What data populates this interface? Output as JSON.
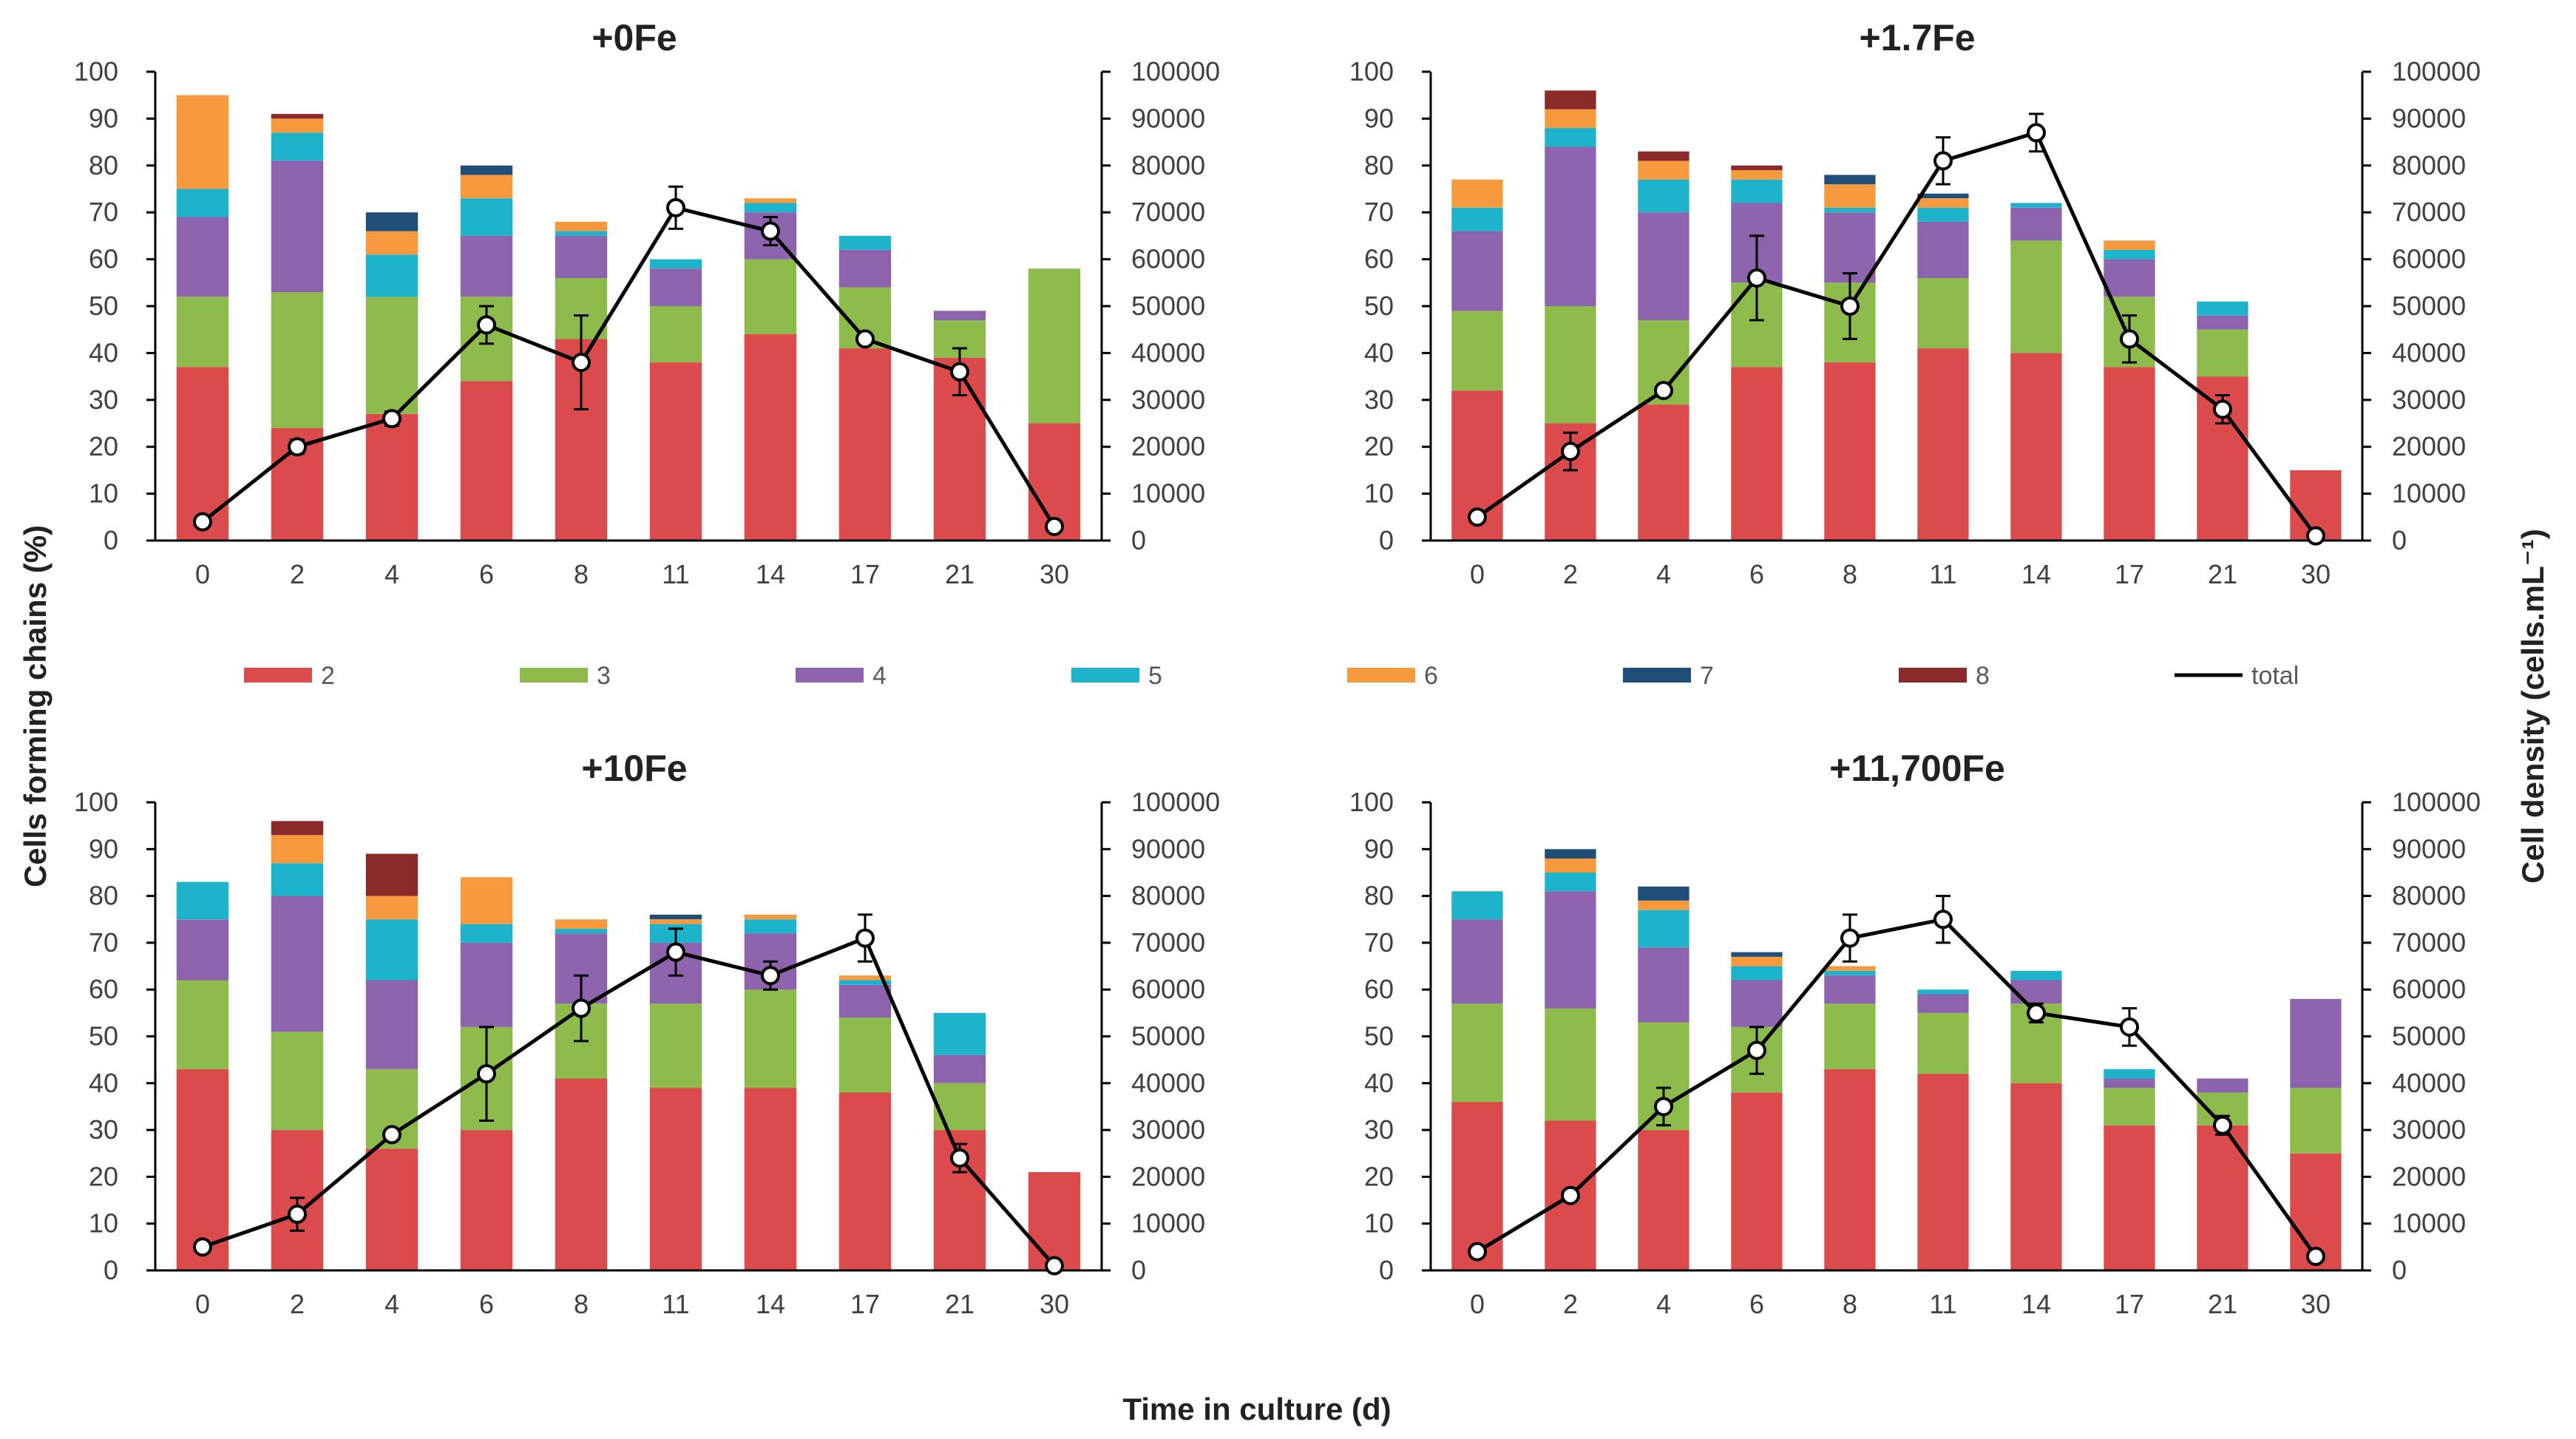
{
  "figure": {
    "y_left_label": "Cells forming chains (%)",
    "y_right_label": "Cell density (cells.mL⁻¹)",
    "x_label": "Time in culture (d)"
  },
  "legend": [
    {
      "key": "2",
      "label": "2",
      "color": "#DC4B4B"
    },
    {
      "key": "3",
      "label": "3",
      "color": "#8DBB4B"
    },
    {
      "key": "4",
      "label": "4",
      "color": "#8E63AD"
    },
    {
      "key": "5",
      "label": "5",
      "color": "#1CB3CB"
    },
    {
      "key": "6",
      "label": "6",
      "color": "#F79A3E"
    },
    {
      "key": "7",
      "label": "7",
      "color": "#1F4E79"
    },
    {
      "key": "8",
      "label": "8",
      "color": "#8B2A2A"
    },
    {
      "key": "total",
      "label": "total",
      "color": "#000000"
    }
  ],
  "chart_data": [
    {
      "type": "bar",
      "title": "+0Fe",
      "categories": [
        "0",
        "2",
        "4",
        "6",
        "8",
        "11",
        "14",
        "17",
        "21",
        "30"
      ],
      "ylim": [
        0,
        100
      ],
      "y2lim": [
        0,
        100000
      ],
      "yticks": [
        "0",
        "10",
        "20",
        "30",
        "40",
        "50",
        "60",
        "70",
        "80",
        "90",
        "100"
      ],
      "y2ticks": [
        "0",
        "10000",
        "20000",
        "30000",
        "40000",
        "50000",
        "60000",
        "70000",
        "80000",
        "90000",
        "100000"
      ],
      "series": [
        {
          "name": "2",
          "values": [
            37,
            24,
            27,
            34,
            43,
            38,
            44,
            41,
            39,
            25
          ]
        },
        {
          "name": "3",
          "values": [
            15,
            29,
            25,
            18,
            13,
            12,
            16,
            13,
            8,
            33
          ]
        },
        {
          "name": "4",
          "values": [
            17,
            28,
            0,
            13,
            9,
            8,
            10,
            8,
            2,
            0
          ]
        },
        {
          "name": "5",
          "values": [
            6,
            6,
            9,
            8,
            1,
            2,
            2,
            3,
            0,
            0
          ]
        },
        {
          "name": "6",
          "values": [
            20,
            3,
            5,
            5,
            2,
            0,
            1,
            0,
            0,
            0
          ]
        },
        {
          "name": "7",
          "values": [
            0,
            0,
            4,
            2,
            0,
            0,
            0,
            0,
            0,
            0
          ]
        },
        {
          "name": "8",
          "values": [
            0,
            1,
            0,
            0,
            0,
            0,
            0,
            0,
            0,
            0
          ]
        }
      ],
      "total": {
        "name": "total",
        "values": [
          4000,
          20000,
          26000,
          46000,
          38000,
          71000,
          66000,
          43000,
          36000,
          3000
        ],
        "errors": [
          0,
          1500,
          1500,
          4000,
          10000,
          4500,
          3000,
          0,
          5000,
          0
        ]
      }
    },
    {
      "type": "bar",
      "title": "+1.7Fe",
      "categories": [
        "0",
        "2",
        "4",
        "6",
        "8",
        "11",
        "14",
        "17",
        "21",
        "30"
      ],
      "ylim": [
        0,
        100
      ],
      "y2lim": [
        0,
        100000
      ],
      "yticks": [
        "0",
        "10",
        "20",
        "30",
        "40",
        "50",
        "60",
        "70",
        "80",
        "90",
        "100"
      ],
      "y2ticks": [
        "0",
        "10000",
        "20000",
        "30000",
        "40000",
        "50000",
        "60000",
        "70000",
        "80000",
        "90000",
        "100000"
      ],
      "series": [
        {
          "name": "2",
          "values": [
            32,
            25,
            29,
            37,
            38,
            41,
            40,
            37,
            35,
            15
          ]
        },
        {
          "name": "3",
          "values": [
            17,
            25,
            18,
            18,
            17,
            15,
            24,
            15,
            10,
            0
          ]
        },
        {
          "name": "4",
          "values": [
            17,
            34,
            23,
            17,
            15,
            12,
            7,
            8,
            3,
            0
          ]
        },
        {
          "name": "5",
          "values": [
            5,
            4,
            7,
            5,
            1,
            3,
            1,
            2,
            3,
            0
          ]
        },
        {
          "name": "6",
          "values": [
            6,
            4,
            4,
            2,
            5,
            2,
            0,
            2,
            0,
            0
          ]
        },
        {
          "name": "7",
          "values": [
            0,
            0,
            0,
            0,
            2,
            1,
            0,
            0,
            0,
            0
          ]
        },
        {
          "name": "8",
          "values": [
            0,
            4,
            2,
            1,
            0,
            0,
            0,
            0,
            0,
            0
          ]
        }
      ],
      "total": {
        "name": "total",
        "values": [
          5000,
          19000,
          32000,
          56000,
          50000,
          81000,
          87000,
          43000,
          28000,
          1000
        ],
        "errors": [
          0,
          4000,
          1000,
          9000,
          7000,
          5000,
          4000,
          5000,
          3000,
          0
        ]
      }
    },
    {
      "type": "bar",
      "title": "+10Fe",
      "categories": [
        "0",
        "2",
        "4",
        "6",
        "8",
        "11",
        "14",
        "17",
        "21",
        "30"
      ],
      "ylim": [
        0,
        100
      ],
      "y2lim": [
        0,
        100000
      ],
      "yticks": [
        "0",
        "10",
        "20",
        "30",
        "40",
        "50",
        "60",
        "70",
        "80",
        "90",
        "100"
      ],
      "y2ticks": [
        "0",
        "10000",
        "20000",
        "30000",
        "40000",
        "50000",
        "60000",
        "70000",
        "80000",
        "90000",
        "100000"
      ],
      "series": [
        {
          "name": "2",
          "values": [
            43,
            30,
            26,
            30,
            41,
            39,
            39,
            38,
            30,
            21
          ]
        },
        {
          "name": "3",
          "values": [
            19,
            21,
            17,
            22,
            16,
            18,
            21,
            16,
            10,
            0
          ]
        },
        {
          "name": "4",
          "values": [
            13,
            29,
            19,
            18,
            15,
            13,
            12,
            7,
            6,
            0
          ]
        },
        {
          "name": "5",
          "values": [
            8,
            7,
            13,
            4,
            1,
            4,
            3,
            1,
            9,
            0
          ]
        },
        {
          "name": "6",
          "values": [
            0,
            6,
            5,
            10,
            2,
            1,
            1,
            1,
            0,
            0
          ]
        },
        {
          "name": "7",
          "values": [
            0,
            0,
            0,
            0,
            0,
            1,
            0,
            0,
            0,
            0
          ]
        },
        {
          "name": "8",
          "values": [
            0,
            3,
            9,
            0,
            0,
            0,
            0,
            0,
            0,
            0
          ]
        }
      ],
      "total": {
        "name": "total",
        "values": [
          5000,
          12000,
          29000,
          42000,
          56000,
          68000,
          63000,
          71000,
          24000,
          1000
        ],
        "errors": [
          0,
          3500,
          0,
          10000,
          7000,
          5000,
          3000,
          5000,
          3000,
          0
        ]
      }
    },
    {
      "type": "bar",
      "title": "+11,700Fe",
      "categories": [
        "0",
        "2",
        "4",
        "6",
        "8",
        "11",
        "14",
        "17",
        "21",
        "30"
      ],
      "ylim": [
        0,
        100
      ],
      "y2lim": [
        0,
        100000
      ],
      "yticks": [
        "0",
        "10",
        "20",
        "30",
        "40",
        "50",
        "60",
        "70",
        "80",
        "90",
        "100"
      ],
      "y2ticks": [
        "0",
        "10000",
        "20000",
        "30000",
        "40000",
        "50000",
        "60000",
        "70000",
        "80000",
        "90000",
        "100000"
      ],
      "series": [
        {
          "name": "2",
          "values": [
            36,
            32,
            30,
            38,
            43,
            42,
            40,
            31,
            31,
            25
          ]
        },
        {
          "name": "3",
          "values": [
            21,
            24,
            23,
            14,
            14,
            13,
            17,
            8,
            7,
            14
          ]
        },
        {
          "name": "4",
          "values": [
            18,
            25,
            16,
            10,
            6,
            4,
            5,
            2,
            3,
            19
          ]
        },
        {
          "name": "5",
          "values": [
            6,
            4,
            8,
            3,
            1,
            1,
            2,
            2,
            0,
            0
          ]
        },
        {
          "name": "6",
          "values": [
            0,
            3,
            2,
            2,
            1,
            0,
            0,
            0,
            0,
            0
          ]
        },
        {
          "name": "7",
          "values": [
            0,
            2,
            3,
            1,
            0,
            0,
            0,
            0,
            0,
            0
          ]
        },
        {
          "name": "8",
          "values": [
            0,
            0,
            0,
            0,
            0,
            0,
            0,
            0,
            0,
            0
          ]
        }
      ],
      "total": {
        "name": "total",
        "values": [
          4000,
          16000,
          35000,
          47000,
          71000,
          75000,
          55000,
          52000,
          31000,
          3000
        ],
        "errors": [
          0,
          0,
          4000,
          5000,
          5000,
          5000,
          2000,
          4000,
          2000,
          0
        ]
      }
    }
  ]
}
